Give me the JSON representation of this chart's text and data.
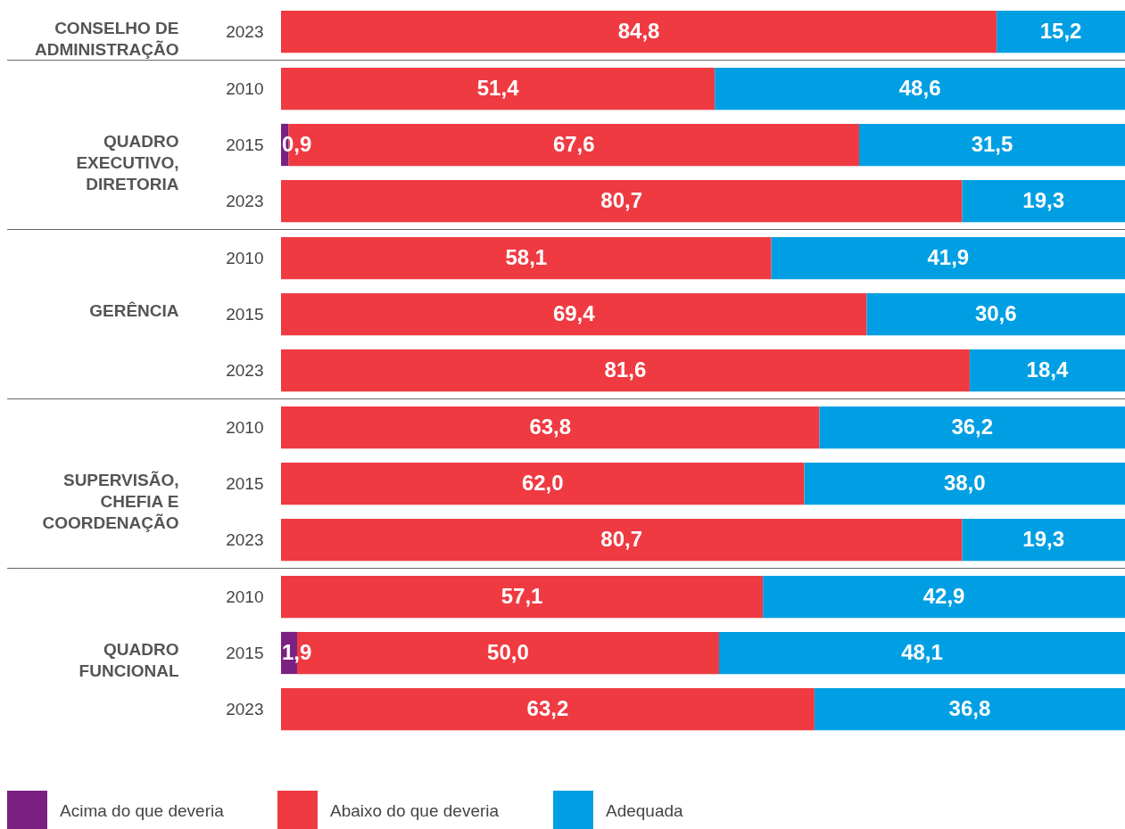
{
  "chart_data": [
    {
      "type": "bar",
      "orientation": "horizontal",
      "stacked": true,
      "ylabel": "CONSELHO DE ADMINISTRAÇÃO",
      "categories": [
        "2023"
      ],
      "xlim": [
        0,
        100
      ],
      "tick_labels": "y",
      "series": [
        {
          "color": "#7a2182",
          "values": [
            null
          ],
          "value_labels": [
            null
          ]
        },
        {
          "color": "#ef3a42",
          "values": [
            84.8
          ],
          "value_labels": [
            "84,8"
          ]
        },
        {
          "color": "#009fe3",
          "values": [
            15.2
          ],
          "value_labels": [
            "15,2"
          ]
        }
      ]
    },
    {
      "type": "bar",
      "orientation": "horizontal",
      "stacked": true,
      "ylabel": "QUADRO EXECUTIVO, DIRETORIA",
      "categories": [
        "2010",
        "2015",
        "2023"
      ],
      "xlim": [
        0,
        100
      ],
      "tick_labels": "y",
      "series": [
        {
          "color": "#7a2182",
          "values": [
            null,
            0.9,
            null
          ],
          "value_labels": [
            null,
            "0,9",
            null
          ]
        },
        {
          "color": "#ef3a42",
          "values": [
            51.4,
            67.6,
            80.7
          ],
          "value_labels": [
            "51,4",
            "67,6",
            "80,7"
          ]
        },
        {
          "color": "#009fe3",
          "values": [
            48.6,
            31.5,
            19.3
          ],
          "value_labels": [
            "48,6",
            "31,5",
            "19,3"
          ]
        }
      ]
    },
    {
      "type": "bar",
      "orientation": "horizontal",
      "stacked": true,
      "ylabel": "GERÊNCIA",
      "categories": [
        "2010",
        "2015",
        "2023"
      ],
      "xlim": [
        0,
        100
      ],
      "tick_labels": "y",
      "series": [
        {
          "color": "#7a2182",
          "values": [
            null,
            null,
            null
          ],
          "value_labels": [
            null,
            null,
            null
          ]
        },
        {
          "color": "#ef3a42",
          "values": [
            58.1,
            69.4,
            81.6
          ],
          "value_labels": [
            "58,1",
            "69,4",
            "81,6"
          ]
        },
        {
          "color": "#009fe3",
          "values": [
            41.9,
            30.6,
            18.4
          ],
          "value_labels": [
            "41,9",
            "30,6",
            "18,4"
          ]
        }
      ]
    },
    {
      "type": "bar",
      "orientation": "horizontal",
      "stacked": true,
      "ylabel": "SUPERVISÃO, CHEFIA E COORDENAÇÃO",
      "categories": [
        "2010",
        "2015",
        "2023"
      ],
      "xlim": [
        0,
        100
      ],
      "tick_labels": "y",
      "series": [
        {
          "color": "#7a2182",
          "values": [
            null,
            null,
            null
          ],
          "value_labels": [
            null,
            null,
            null
          ]
        },
        {
          "color": "#ef3a42",
          "values": [
            63.8,
            62.0,
            80.7
          ],
          "value_labels": [
            "63,8",
            "62,0",
            "80,7"
          ]
        },
        {
          "color": "#009fe3",
          "values": [
            36.2,
            38.0,
            19.3
          ],
          "value_labels": [
            "36,2",
            "38,0",
            "19,3"
          ]
        }
      ]
    },
    {
      "type": "bar",
      "orientation": "horizontal",
      "stacked": true,
      "ylabel": "QUADRO FUNCIONAL",
      "categories": [
        "2010",
        "2015",
        "2023"
      ],
      "xlim": [
        0,
        100
      ],
      "tick_labels": "y",
      "legend": "bottom left",
      "series": [
        {
          "name": "Acima do que deveria",
          "color": "#7a2182",
          "values": [
            null,
            1.9,
            null
          ],
          "value_labels": [
            null,
            "1,9",
            null
          ]
        },
        {
          "name": "Abaixo do que deveria",
          "color": "#ef3a42",
          "values": [
            57.1,
            50.0,
            63.2
          ],
          "value_labels": [
            "57,1",
            "50,0",
            "63,2"
          ]
        },
        {
          "name": "Adequada",
          "color": "#009fe3",
          "values": [
            42.9,
            48.1,
            36.8
          ],
          "value_labels": [
            "42,9",
            "48,1",
            "36,8"
          ]
        }
      ]
    }
  ]
}
